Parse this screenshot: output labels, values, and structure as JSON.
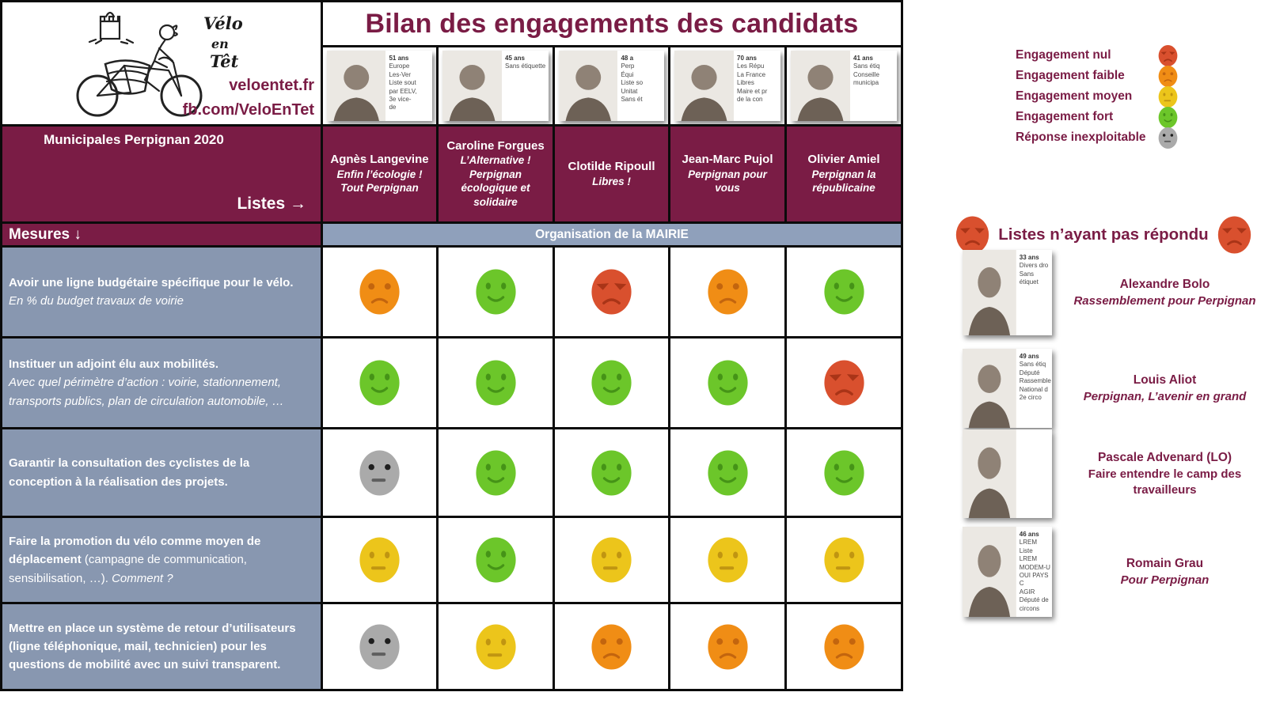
{
  "brand": {
    "logo_lines": [
      "Vélo",
      "en",
      "Têt"
    ],
    "website": "veloentet.fr",
    "facebook": "fb.com/VeloEnTet"
  },
  "title": "Bilan des engagements des candidats",
  "table": {
    "election_label": "Municipales Perpignan 2020",
    "listes_label": "Listes →",
    "mesures_label": "Mesures ↓",
    "section_header": "Organisation de la MAIRIE",
    "candidates": [
      {
        "name": "Agnès Langevine",
        "list": "Enfin l’écologie !\nTout Perpignan",
        "photo_caption": [
          "51 ans",
          "Europe",
          "Les-Ver",
          "Liste sout",
          "par EELV,",
          "3e vice-",
          "de"
        ]
      },
      {
        "name": "Caroline Forgues",
        "list": "L’Alternative !\nPerpignan\nécologique et\nsolidaire",
        "photo_caption": [
          "45 ans",
          "Sans étiquette"
        ]
      },
      {
        "name": "Clotilde Ripoull",
        "list": "Libres !",
        "photo_caption": [
          "48 a",
          "Perp",
          "Équi",
          "Liste so",
          "Unitat",
          "Sans ét"
        ]
      },
      {
        "name": "Jean-Marc Pujol",
        "list": "Perpignan pour\nvous",
        "photo_caption": [
          "70 ans",
          "Les Répu",
          "La France",
          "Libres",
          "Maire et pr",
          "de la con"
        ]
      },
      {
        "name": "Olivier Amiel",
        "list": "Perpignan la\nrépublicaine",
        "photo_caption": [
          "41 ans",
          "Sans étiq",
          "Conseille",
          "municipa"
        ]
      }
    ],
    "measures": [
      {
        "bold": "Avoir une ligne budgétaire spécifique pour le vélo.",
        "regular": "",
        "italic": "En % du budget travaux de voirie"
      },
      {
        "bold": "Instituer un adjoint élu aux mobilités.",
        "regular": "",
        "italic": "Avec quel périmètre d’action : voirie, stationnement, transports publics, plan de circulation automobile, …"
      },
      {
        "bold": "Garantir la consultation des cyclistes de la conception à la réalisation des projets.",
        "regular": "",
        "italic": ""
      },
      {
        "bold": "Faire la promotion du vélo comme moyen de déplacement",
        "regular": " (campagne de communication, sensibilisation, …). ",
        "italic": "Comment ?"
      },
      {
        "bold": "Mettre en place un système de retour d’utilisateurs (ligne téléphonique, mail, technicien) pour les questions de mobilité avec un suivi transparent.",
        "regular": "",
        "italic": ""
      }
    ],
    "ratings": [
      [
        "faible",
        "fort",
        "nul",
        "faible",
        "fort"
      ],
      [
        "fort",
        "fort",
        "fort",
        "fort",
        "nul"
      ],
      [
        "inexploitable",
        "fort",
        "fort",
        "fort",
        "fort"
      ],
      [
        "moyen",
        "fort",
        "moyen",
        "moyen",
        "moyen"
      ],
      [
        "inexploitable",
        "moyen",
        "faible",
        "faible",
        "faible"
      ]
    ]
  },
  "legend": {
    "items": [
      {
        "label": "Engagement nul",
        "emoji": "nul"
      },
      {
        "label": "Engagement faible",
        "emoji": "faible"
      },
      {
        "label": "Engagement moyen",
        "emoji": "moyen"
      },
      {
        "label": "Engagement fort",
        "emoji": "fort"
      },
      {
        "label": "Réponse inexploitable",
        "emoji": "inexploitable"
      }
    ]
  },
  "nonresponders": {
    "heading": "Listes n’ayant pas répondu",
    "emoji": "nul",
    "people": [
      {
        "name": "Alexandre Bolo",
        "list": "Rassemblement pour Perpignan",
        "photo_caption": [
          "33 ans",
          "Divers dro",
          "Sans étiquet"
        ]
      },
      {
        "name": "Louis Aliot",
        "list": "Perpignan, L’avenir en grand",
        "photo_caption": [
          "49 ans",
          "Sans étiq",
          "Député",
          "Rassemble",
          "National d",
          "2e circo"
        ]
      },
      {
        "name": "Pascale Advenard (LO)",
        "list": "Faire entendre le camp des travailleurs",
        "photo_caption": []
      },
      {
        "name": "Romain Grau",
        "list": "Pour Perpignan",
        "photo_caption": [
          "46 ans",
          "LREM",
          "Liste LREM",
          "MODEM-U",
          "OUI PAYS C",
          "AGIR",
          "Député de",
          "circons"
        ]
      }
    ]
  },
  "colors": {
    "maroon": "#7a1c45",
    "section_band": "#8fa0bb",
    "measure_bg": "#8897b0",
    "emoji_nul": "#d9502e",
    "emoji_faible": "#f08d15",
    "emoji_moyen": "#ecc51b",
    "emoji_fort": "#6cc62a",
    "emoji_inexploitable": "#aaaaaa"
  }
}
